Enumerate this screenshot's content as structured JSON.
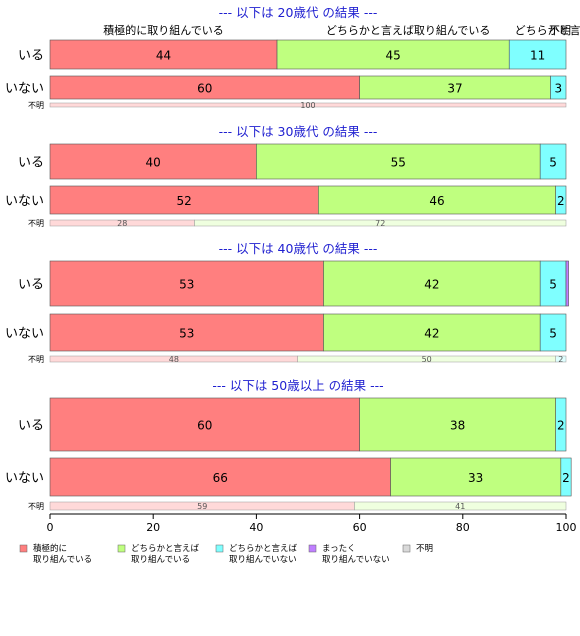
{
  "chart_data": {
    "type": "bar",
    "orientation": "horizontal",
    "stacked": true,
    "xlim": [
      0,
      100
    ],
    "x_ticks": [
      0,
      20,
      40,
      60,
      80,
      100
    ],
    "categories_legend": [
      "積極的に\n取り組んでいる",
      "どちらかと言えば\n取り組んでいる",
      "どちらかと言えば\n取り組んでいない",
      "まったく\n取り組んでいない",
      "不明"
    ],
    "colors": [
      "#ff7f7f",
      "#bfff7f",
      "#7fffff",
      "#bf7fff",
      "#d9d9d9"
    ],
    "top_labels": [
      "積極的に取り組んでいる",
      "どちらかと言えば取り組んでいる",
      "どちらかと言",
      "不明"
    ],
    "sections": [
      {
        "title": "--- 以下は 20歳代 の結果 ---",
        "rows": [
          {
            "label": "いる",
            "values": [
              44,
              45,
              11,
              0,
              0
            ],
            "labels": [
              "44",
              "45",
              "11",
              "",
              ""
            ]
          },
          {
            "label": "いない",
            "values": [
              60,
              37,
              3,
              0,
              0
            ],
            "labels": [
              "60",
              "37",
              "3",
              "",
              ""
            ]
          }
        ],
        "unknown": {
          "label": "不明",
          "values": [
            100,
            0,
            0,
            0,
            0
          ],
          "labels": [
            "100",
            "",
            "",
            "",
            ""
          ]
        }
      },
      {
        "title": "--- 以下は 30歳代 の結果 ---",
        "rows": [
          {
            "label": "いる",
            "values": [
              40,
              55,
              5,
              0,
              0
            ],
            "labels": [
              "40",
              "55",
              "5",
              "",
              ""
            ]
          },
          {
            "label": "いない",
            "values": [
              52,
              46,
              2,
              0,
              0
            ],
            "labels": [
              "52",
              "46",
              "2",
              "",
              ""
            ]
          }
        ],
        "unknown": {
          "label": "不明",
          "values": [
            28,
            72,
            0,
            0,
            0
          ],
          "labels": [
            "28",
            "72",
            "",
            "",
            ""
          ]
        }
      },
      {
        "title": "--- 以下は 40歳代 の結果 ---",
        "rows": [
          {
            "label": "いる",
            "values": [
              53,
              42,
              5,
              0.5,
              0
            ],
            "labels": [
              "53",
              "42",
              "5",
              "",
              ""
            ]
          },
          {
            "label": "いない",
            "values": [
              53,
              42,
              5,
              0,
              0
            ],
            "labels": [
              "53",
              "42",
              "5",
              "",
              ""
            ]
          }
        ],
        "unknown": {
          "label": "不明",
          "values": [
            48,
            50,
            2,
            0,
            0
          ],
          "labels": [
            "48",
            "50",
            "2",
            "",
            ""
          ]
        }
      },
      {
        "title": "--- 以下は 50歳以上 の結果 ---",
        "rows": [
          {
            "label": "いる",
            "values": [
              60,
              38,
              2,
              0,
              0
            ],
            "labels": [
              "60",
              "38",
              "2",
              "",
              ""
            ]
          },
          {
            "label": "いない",
            "values": [
              66,
              33,
              2,
              0,
              0
            ],
            "labels": [
              "66",
              "33",
              "2",
              "",
              ""
            ]
          }
        ],
        "unknown": {
          "label": "不明",
          "values": [
            59,
            41,
            0,
            0,
            0
          ],
          "labels": [
            "59",
            "41",
            "",
            "",
            ""
          ]
        }
      }
    ]
  }
}
